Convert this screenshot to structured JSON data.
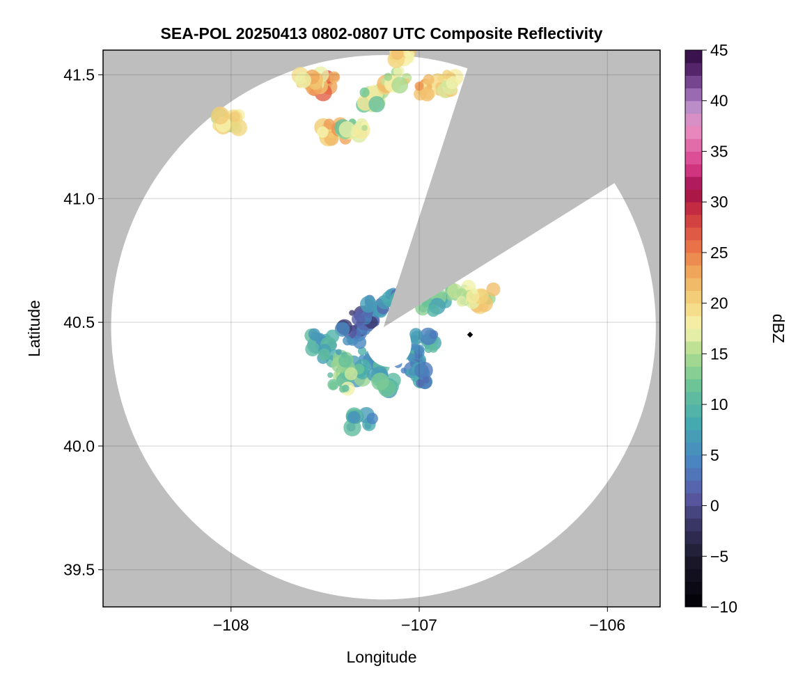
{
  "chart_data": {
    "type": "heatmap",
    "title": "SEA-POL 20250413 0802-0807 UTC Composite Reflectivity",
    "xlabel": "Longitude",
    "ylabel": "Latitude",
    "xlim": [
      -108.68,
      -105.72
    ],
    "ylim": [
      39.35,
      41.6
    ],
    "xticks": [
      -108,
      -107,
      -106
    ],
    "xtick_labels": [
      "−108",
      "−107",
      "−106"
    ],
    "yticks": [
      39.5,
      40.0,
      40.5,
      41.0,
      41.5
    ],
    "ytick_labels": [
      "39.5",
      "40.0",
      "40.5",
      "41.0",
      "41.5"
    ],
    "grid": true,
    "no_data_color": "#bebebe",
    "radar": {
      "center": [
        -107.19,
        40.48
      ],
      "max_range_deg_lat": 1.1,
      "blocked_sector_bearing_deg": [
        18,
        58
      ]
    },
    "colorbar": {
      "label": "dBZ",
      "min": -10,
      "max": 45,
      "ticks": [
        -10,
        -5,
        0,
        5,
        10,
        15,
        20,
        25,
        30,
        35,
        40,
        45
      ],
      "tick_labels": [
        "−10",
        "−5",
        "0",
        "5",
        "10",
        "15",
        "20",
        "25",
        "30",
        "35",
        "40",
        "45"
      ],
      "colors": [
        "#000004",
        "#1d1a2e",
        "#3a3666",
        "#5a5aa6",
        "#4a84c2",
        "#45aab0",
        "#6ec596",
        "#b5de8f",
        "#f7f5b0",
        "#f3d37b",
        "#f0a95b",
        "#ea6f47",
        "#c8303f",
        "#a00f4c",
        "#d83b88",
        "#ea90c3",
        "#b78dc8",
        "#8b5aa6",
        "#5b2a73",
        "#2d0a40"
      ],
      "color_positions": [
        0,
        0.09,
        0.15,
        0.2,
        0.26,
        0.33,
        0.4,
        0.46,
        0.5,
        0.55,
        0.6,
        0.65,
        0.71,
        0.75,
        0.79,
        0.86,
        0.9,
        0.93,
        0.96,
        1.0
      ]
    },
    "echoes": [
      {
        "lon": -107.05,
        "lat": 40.36,
        "dbz": 6
      },
      {
        "lon": -107.25,
        "lat": 40.35,
        "dbz": 8
      },
      {
        "lon": -107.35,
        "lat": 40.3,
        "dbz": 10
      },
      {
        "lon": -107.42,
        "lat": 40.26,
        "dbz": 14
      },
      {
        "lon": -107.2,
        "lat": 40.26,
        "dbz": 9
      },
      {
        "lon": -107.02,
        "lat": 40.28,
        "dbz": 5
      },
      {
        "lon": -106.98,
        "lat": 40.42,
        "dbz": 7
      },
      {
        "lon": -107.35,
        "lat": 40.45,
        "dbz": 3
      },
      {
        "lon": -107.3,
        "lat": 40.52,
        "dbz": 1
      },
      {
        "lon": -107.22,
        "lat": 40.56,
        "dbz": 4
      },
      {
        "lon": -107.1,
        "lat": 40.6,
        "dbz": 6
      },
      {
        "lon": -106.92,
        "lat": 40.58,
        "dbz": 10
      },
      {
        "lon": -106.78,
        "lat": 40.61,
        "dbz": 14
      },
      {
        "lon": -106.66,
        "lat": 40.6,
        "dbz": 18
      },
      {
        "lon": -107.52,
        "lat": 40.42,
        "dbz": 9
      },
      {
        "lon": -107.45,
        "lat": 40.36,
        "dbz": 11
      },
      {
        "lon": -107.5,
        "lat": 41.46,
        "dbz": 24
      },
      {
        "lon": -107.58,
        "lat": 41.47,
        "dbz": 20
      },
      {
        "lon": -107.45,
        "lat": 41.27,
        "dbz": 21
      },
      {
        "lon": -107.35,
        "lat": 41.28,
        "dbz": 15
      },
      {
        "lon": -106.95,
        "lat": 41.45,
        "dbz": 22
      },
      {
        "lon": -106.87,
        "lat": 41.47,
        "dbz": 20
      },
      {
        "lon": -107.25,
        "lat": 41.41,
        "dbz": 15
      },
      {
        "lon": -107.12,
        "lat": 41.48,
        "dbz": 18
      },
      {
        "lon": -108.02,
        "lat": 41.31,
        "dbz": 17
      },
      {
        "lon": -107.08,
        "lat": 41.58,
        "dbz": 20
      },
      {
        "lon": -107.31,
        "lat": 40.1,
        "dbz": 7
      },
      {
        "lon": -106.73,
        "lat": 40.45,
        "dbz": -10
      }
    ]
  }
}
